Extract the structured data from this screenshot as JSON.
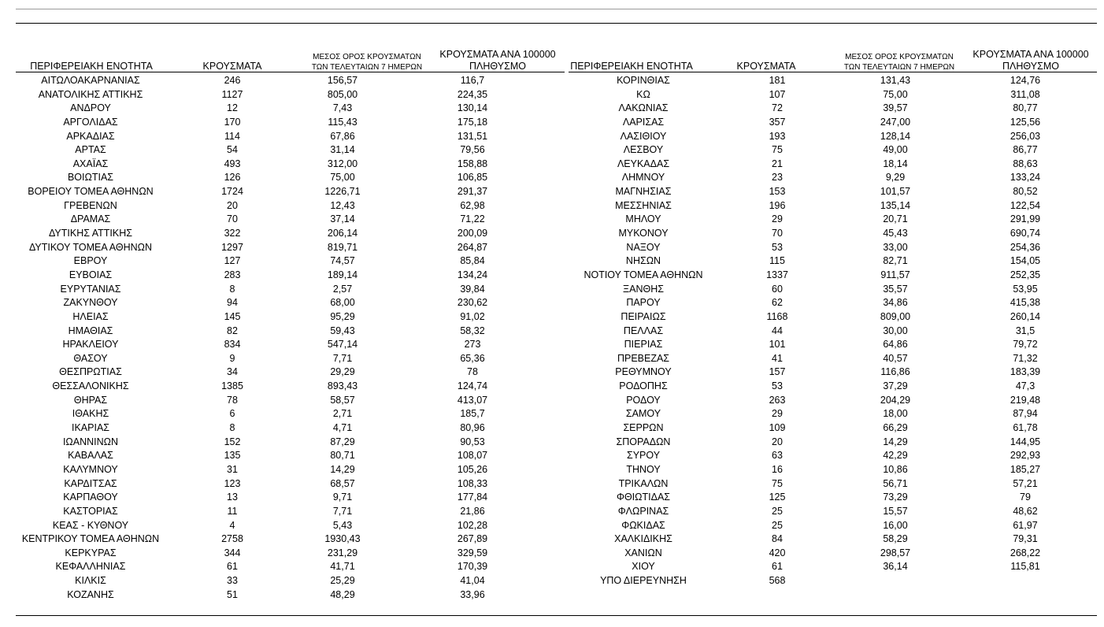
{
  "headers": {
    "region": "ΠΕΡΙΦΕΡΕΙΑΚΗ ΕΝΟΤΗΤΑ",
    "cases": "ΚΡΟΥΣΜΑΤΑ",
    "avg7_line1": "ΜΕΣΟΣ ΟΡΟΣ ΚΡΟΥΣΜΑΤΩΝ",
    "avg7_line2": "ΤΩΝ ΤΕΛΕΥΤΑΙΩΝ 7 ΗΜΕΡΩΝ",
    "per100k_line1": "ΚΡΟΥΣΜΑΤΑ ΑΝΑ 100000",
    "per100k_line2": "ΠΛΗΘΥΣΜΟ"
  },
  "left_rows": [
    [
      "ΑΙΤΩΛΟΑΚΑΡΝΑΝΙΑΣ",
      "246",
      "156,57",
      "116,7"
    ],
    [
      "ΑΝΑΤΟΛΙΚΗΣ ΑΤΤΙΚΗΣ",
      "1127",
      "805,00",
      "224,35"
    ],
    [
      "ΑΝΔΡΟΥ",
      "12",
      "7,43",
      "130,14"
    ],
    [
      "ΑΡΓΟΛΙΔΑΣ",
      "170",
      "115,43",
      "175,18"
    ],
    [
      "ΑΡΚΑΔΙΑΣ",
      "114",
      "67,86",
      "131,51"
    ],
    [
      "ΑΡΤΑΣ",
      "54",
      "31,14",
      "79,56"
    ],
    [
      "ΑΧΑΪΑΣ",
      "493",
      "312,00",
      "158,88"
    ],
    [
      "ΒΟΙΩΤΙΑΣ",
      "126",
      "75,00",
      "106,85"
    ],
    [
      "ΒΟΡΕΙΟΥ ΤΟΜΕΑ ΑΘΗΝΩΝ",
      "1724",
      "1226,71",
      "291,37"
    ],
    [
      "ΓΡΕΒΕΝΩΝ",
      "20",
      "12,43",
      "62,98"
    ],
    [
      "ΔΡΑΜΑΣ",
      "70",
      "37,14",
      "71,22"
    ],
    [
      "ΔΥΤΙΚΗΣ ΑΤΤΙΚΗΣ",
      "322",
      "206,14",
      "200,09"
    ],
    [
      "ΔΥΤΙΚΟΥ ΤΟΜΕΑ ΑΘΗΝΩΝ",
      "1297",
      "819,71",
      "264,87"
    ],
    [
      "ΕΒΡΟΥ",
      "127",
      "74,57",
      "85,84"
    ],
    [
      "ΕΥΒΟΙΑΣ",
      "283",
      "189,14",
      "134,24"
    ],
    [
      "ΕΥΡΥΤΑΝΙΑΣ",
      "8",
      "2,57",
      "39,84"
    ],
    [
      "ΖΑΚΥΝΘΟΥ",
      "94",
      "68,00",
      "230,62"
    ],
    [
      "ΗΛΕΙΑΣ",
      "145",
      "95,29",
      "91,02"
    ],
    [
      "ΗΜΑΘΙΑΣ",
      "82",
      "59,43",
      "58,32"
    ],
    [
      "ΗΡΑΚΛΕΙΟΥ",
      "834",
      "547,14",
      "273"
    ],
    [
      "ΘΑΣΟΥ",
      "9",
      "7,71",
      "65,36"
    ],
    [
      "ΘΕΣΠΡΩΤΙΑΣ",
      "34",
      "29,29",
      "78"
    ],
    [
      "ΘΕΣΣΑΛΟΝΙΚΗΣ",
      "1385",
      "893,43",
      "124,74"
    ],
    [
      "ΘΗΡΑΣ",
      "78",
      "58,57",
      "413,07"
    ],
    [
      "ΙΘΑΚΗΣ",
      "6",
      "2,71",
      "185,7"
    ],
    [
      "ΙΚΑΡΙΑΣ",
      "8",
      "4,71",
      "80,96"
    ],
    [
      "ΙΩΑΝΝΙΝΩΝ",
      "152",
      "87,29",
      "90,53"
    ],
    [
      "ΚΑΒΑΛΑΣ",
      "135",
      "80,71",
      "108,07"
    ],
    [
      "ΚΑΛΥΜΝΟΥ",
      "31",
      "14,29",
      "105,26"
    ],
    [
      "ΚΑΡΔΙΤΣΑΣ",
      "123",
      "68,57",
      "108,33"
    ],
    [
      "ΚΑΡΠΑΘΟΥ",
      "13",
      "9,71",
      "177,84"
    ],
    [
      "ΚΑΣΤΟΡΙΑΣ",
      "11",
      "7,71",
      "21,86"
    ],
    [
      "ΚΕΑΣ - ΚΥΘΝΟΥ",
      "4",
      "5,43",
      "102,28"
    ],
    [
      "ΚΕΝΤΡΙΚΟΥ ΤΟΜΕΑ ΑΘΗΝΩΝ",
      "2758",
      "1930,43",
      "267,89"
    ],
    [
      "ΚΕΡΚΥΡΑΣ",
      "344",
      "231,29",
      "329,59"
    ],
    [
      "ΚΕΦΑΛΛΗΝΙΑΣ",
      "61",
      "41,71",
      "170,39"
    ],
    [
      "ΚΙΛΚΙΣ",
      "33",
      "25,29",
      "41,04"
    ],
    [
      "ΚΟΖΑΝΗΣ",
      "51",
      "48,29",
      "33,96"
    ]
  ],
  "right_rows": [
    [
      "ΚΟΡΙΝΘΙΑΣ",
      "181",
      "131,43",
      "124,76"
    ],
    [
      "ΚΩ",
      "107",
      "75,00",
      "311,08"
    ],
    [
      "ΛΑΚΩΝΙΑΣ",
      "72",
      "39,57",
      "80,77"
    ],
    [
      "ΛΑΡΙΣΑΣ",
      "357",
      "247,00",
      "125,56"
    ],
    [
      "ΛΑΣΙΘΙΟΥ",
      "193",
      "128,14",
      "256,03"
    ],
    [
      "ΛΕΣΒΟΥ",
      "75",
      "49,00",
      "86,77"
    ],
    [
      "ΛΕΥΚΑΔΑΣ",
      "21",
      "18,14",
      "88,63"
    ],
    [
      "ΛΗΜΝΟΥ",
      "23",
      "9,29",
      "133,24"
    ],
    [
      "ΜΑΓΝΗΣΙΑΣ",
      "153",
      "101,57",
      "80,52"
    ],
    [
      "ΜΕΣΣΗΝΙΑΣ",
      "196",
      "135,14",
      "122,54"
    ],
    [
      "ΜΗΛΟΥ",
      "29",
      "20,71",
      "291,99"
    ],
    [
      "ΜΥΚΟΝΟΥ",
      "70",
      "45,43",
      "690,74"
    ],
    [
      "ΝΑΞΟΥ",
      "53",
      "33,00",
      "254,36"
    ],
    [
      "ΝΗΣΩΝ",
      "115",
      "82,71",
      "154,05"
    ],
    [
      "ΝΟΤΙΟΥ ΤΟΜΕΑ ΑΘΗΝΩΝ",
      "1337",
      "911,57",
      "252,35"
    ],
    [
      "ΞΑΝΘΗΣ",
      "60",
      "35,57",
      "53,95"
    ],
    [
      "ΠΑΡΟΥ",
      "62",
      "34,86",
      "415,38"
    ],
    [
      "ΠΕΙΡΑΙΩΣ",
      "1168",
      "809,00",
      "260,14"
    ],
    [
      "ΠΕΛΛΑΣ",
      "44",
      "30,00",
      "31,5"
    ],
    [
      "ΠΙΕΡΙΑΣ",
      "101",
      "64,86",
      "79,72"
    ],
    [
      "ΠΡΕΒΕΖΑΣ",
      "41",
      "40,57",
      "71,32"
    ],
    [
      "ΡΕΘΥΜΝΟΥ",
      "157",
      "116,86",
      "183,39"
    ],
    [
      "ΡΟΔΟΠΗΣ",
      "53",
      "37,29",
      "47,3"
    ],
    [
      "ΡΟΔΟΥ",
      "263",
      "204,29",
      "219,48"
    ],
    [
      "ΣΑΜΟΥ",
      "29",
      "18,00",
      "87,94"
    ],
    [
      "ΣΕΡΡΩΝ",
      "109",
      "66,29",
      "61,78"
    ],
    [
      "ΣΠΟΡΑΔΩΝ",
      "20",
      "14,29",
      "144,95"
    ],
    [
      "ΣΥΡΟΥ",
      "63",
      "42,29",
      "292,93"
    ],
    [
      "ΤΗΝΟΥ",
      "16",
      "10,86",
      "185,27"
    ],
    [
      "ΤΡΙΚΑΛΩΝ",
      "75",
      "56,71",
      "57,21"
    ],
    [
      "ΦΘΙΩΤΙΔΑΣ",
      "125",
      "73,29",
      "79"
    ],
    [
      "ΦΛΩΡΙΝΑΣ",
      "25",
      "15,57",
      "48,62"
    ],
    [
      "ΦΩΚΙΔΑΣ",
      "25",
      "16,00",
      "61,97"
    ],
    [
      "ΧΑΛΚΙΔΙΚΗΣ",
      "84",
      "58,29",
      "79,31"
    ],
    [
      "ΧΑΝΙΩΝ",
      "420",
      "298,57",
      "268,22"
    ],
    [
      "ΧΙΟΥ",
      "61",
      "36,14",
      "115,81"
    ],
    [
      "ΥΠΟ ΔΙΕΡΕΥΝΗΣΗ",
      "568",
      "",
      ""
    ]
  ]
}
